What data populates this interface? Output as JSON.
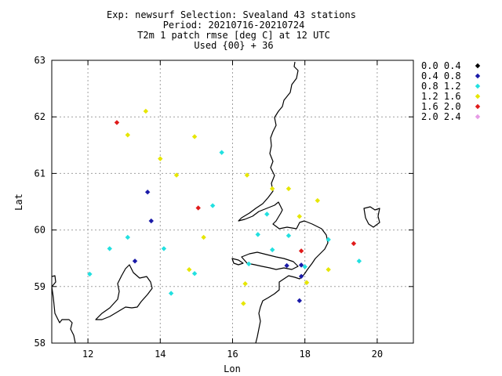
{
  "title": {
    "line1": "Exp: newsurf   Selection: Svealand     43 stations",
    "line2": "Period: 20210716-20210724",
    "line3": "T2m 1 patch rmse [deg C] at  12 UTC",
    "line4": "Used {00} + 36"
  },
  "chart_data": {
    "type": "scatter",
    "xlabel": "Lon",
    "ylabel": "Lat",
    "xlim": [
      11,
      21
    ],
    "ylim": [
      58,
      63
    ],
    "xticks": [
      12,
      14,
      16,
      18,
      20
    ],
    "yticks": [
      58,
      59,
      60,
      61,
      62,
      63
    ],
    "grid": true,
    "legend_position": "right",
    "classes": [
      {
        "label": "0.0 0.4",
        "color": "#000000"
      },
      {
        "label": "0.4 0.8",
        "color": "#1a1aa8"
      },
      {
        "label": "0.8 1.2",
        "color": "#22e0e0"
      },
      {
        "label": "1.2 1.6",
        "color": "#e6e600"
      },
      {
        "label": "1.6 2.0",
        "color": "#e01a1a"
      },
      {
        "label": "2.0 2.4",
        "color": "#e69be6"
      }
    ],
    "points": [
      {
        "lon": 13.65,
        "lat": 60.67,
        "cls": 1
      },
      {
        "lon": 13.75,
        "lat": 60.16,
        "cls": 1
      },
      {
        "lon": 13.3,
        "lat": 59.45,
        "cls": 1
      },
      {
        "lon": 17.5,
        "lat": 59.37,
        "cls": 1
      },
      {
        "lon": 17.9,
        "lat": 59.38,
        "cls": 1
      },
      {
        "lon": 17.9,
        "lat": 59.18,
        "cls": 1
      },
      {
        "lon": 17.85,
        "lat": 58.75,
        "cls": 1
      },
      {
        "lon": 15.7,
        "lat": 61.37,
        "cls": 2
      },
      {
        "lon": 15.45,
        "lat": 60.43,
        "cls": 2
      },
      {
        "lon": 16.95,
        "lat": 60.28,
        "cls": 2
      },
      {
        "lon": 13.1,
        "lat": 59.87,
        "cls": 2
      },
      {
        "lon": 12.6,
        "lat": 59.67,
        "cls": 2
      },
      {
        "lon": 14.1,
        "lat": 59.67,
        "cls": 2
      },
      {
        "lon": 16.7,
        "lat": 59.92,
        "cls": 2
      },
      {
        "lon": 17.55,
        "lat": 59.9,
        "cls": 2
      },
      {
        "lon": 17.1,
        "lat": 59.65,
        "cls": 2
      },
      {
        "lon": 18.65,
        "lat": 59.83,
        "cls": 2
      },
      {
        "lon": 19.5,
        "lat": 59.45,
        "cls": 2
      },
      {
        "lon": 12.05,
        "lat": 59.22,
        "cls": 2
      },
      {
        "lon": 14.95,
        "lat": 59.23,
        "cls": 2
      },
      {
        "lon": 14.3,
        "lat": 58.88,
        "cls": 2
      },
      {
        "lon": 16.45,
        "lat": 59.4,
        "cls": 2
      },
      {
        "lon": 18.0,
        "lat": 59.35,
        "cls": 2
      },
      {
        "lon": 13.6,
        "lat": 62.1,
        "cls": 3
      },
      {
        "lon": 13.1,
        "lat": 61.68,
        "cls": 3
      },
      {
        "lon": 14.95,
        "lat": 61.65,
        "cls": 3
      },
      {
        "lon": 14.0,
        "lat": 61.26,
        "cls": 3
      },
      {
        "lon": 14.45,
        "lat": 60.97,
        "cls": 3
      },
      {
        "lon": 16.4,
        "lat": 60.97,
        "cls": 3
      },
      {
        "lon": 17.1,
        "lat": 60.73,
        "cls": 3
      },
      {
        "lon": 17.55,
        "lat": 60.73,
        "cls": 3
      },
      {
        "lon": 18.35,
        "lat": 60.52,
        "cls": 3
      },
      {
        "lon": 17.85,
        "lat": 60.24,
        "cls": 3
      },
      {
        "lon": 15.2,
        "lat": 59.87,
        "cls": 3
      },
      {
        "lon": 14.8,
        "lat": 59.3,
        "cls": 3
      },
      {
        "lon": 18.65,
        "lat": 59.3,
        "cls": 3
      },
      {
        "lon": 16.35,
        "lat": 59.05,
        "cls": 3
      },
      {
        "lon": 18.05,
        "lat": 59.07,
        "cls": 3
      },
      {
        "lon": 16.3,
        "lat": 58.7,
        "cls": 3
      },
      {
        "lon": 12.8,
        "lat": 61.9,
        "cls": 4
      },
      {
        "lon": 15.05,
        "lat": 60.39,
        "cls": 4
      },
      {
        "lon": 17.9,
        "lat": 59.63,
        "cls": 4
      },
      {
        "lon": 19.35,
        "lat": 59.76,
        "cls": 4
      }
    ]
  }
}
